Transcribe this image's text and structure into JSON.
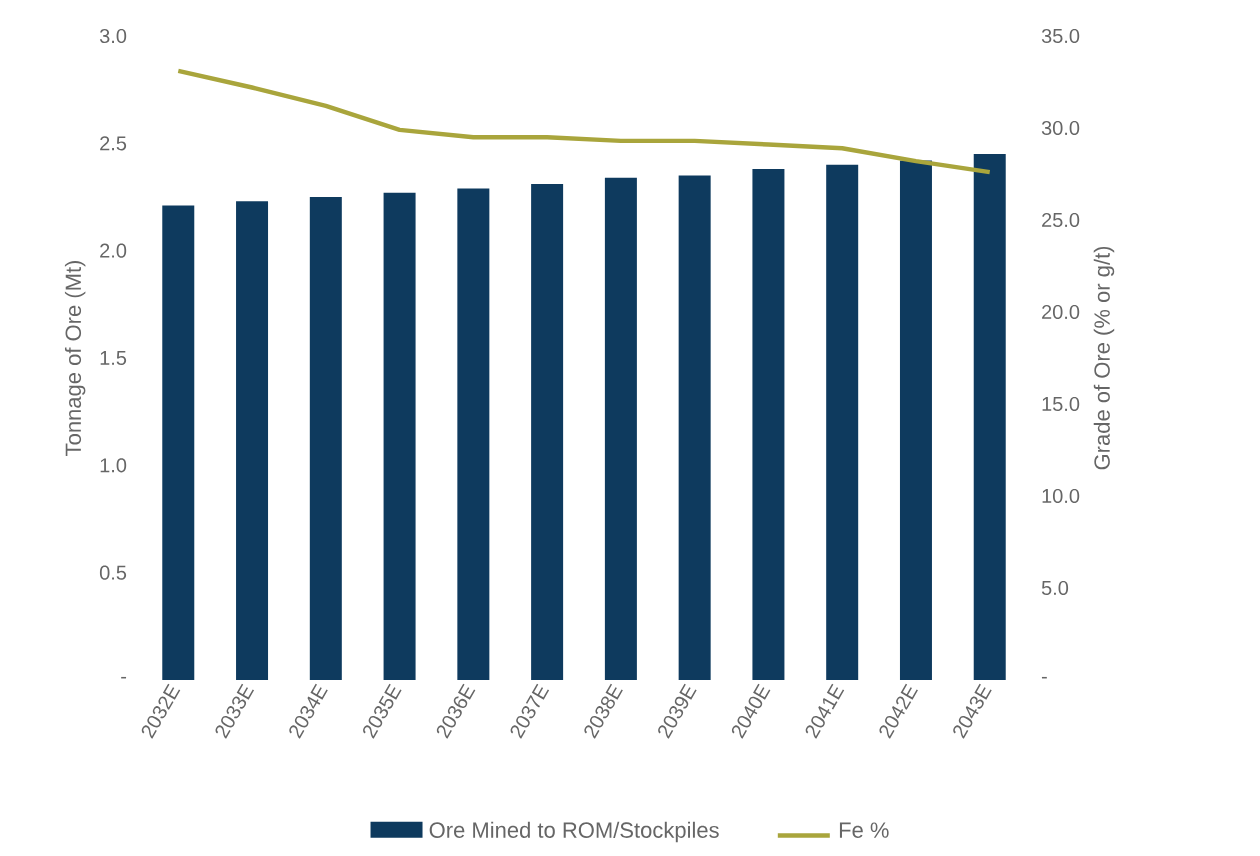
{
  "chart_data": {
    "type": "bar",
    "ylabel": "Tonnage of Ore (Mt)",
    "y2label": "Grade of Ore (% or g/t)",
    "categories": [
      "2032E",
      "2033E",
      "2034E",
      "2035E",
      "2036E",
      "2037E",
      "2038E",
      "2039E",
      "2040E",
      "2041E",
      "2042E",
      "2043E"
    ],
    "series": [
      {
        "name": "Ore Mined to ROM/Stockpiles",
        "color": "#0e3a5e",
        "values": [
          2.21,
          2.23,
          2.25,
          2.27,
          2.29,
          2.31,
          2.34,
          2.35,
          2.38,
          2.4,
          2.42,
          2.45
        ]
      },
      {
        "name": "Fe %",
        "type": "line",
        "axis": "y2",
        "color": "#a9a53c",
        "values": [
          33.1,
          32.2,
          31.2,
          29.9,
          29.5,
          29.5,
          29.3,
          29.3,
          29.1,
          28.9,
          28.2,
          27.6
        ]
      }
    ],
    "ylim": [
      0,
      3
    ],
    "yticks": [
      {
        "value": 0,
        "label": "-"
      },
      {
        "value": 0.5,
        "label": "0.5"
      },
      {
        "value": 1,
        "label": "1.0"
      },
      {
        "value": 1.5,
        "label": "1.5"
      },
      {
        "value": 2,
        "label": "2.0"
      },
      {
        "value": 2.5,
        "label": "2.5"
      },
      {
        "value": 3,
        "label": "3.0"
      }
    ],
    "y2lim": [
      0,
      35
    ],
    "y2ticks": [
      {
        "value": 0,
        "label": "-"
      },
      {
        "value": 5,
        "label": "5.0"
      },
      {
        "value": 10,
        "label": "10.0"
      },
      {
        "value": 15,
        "label": "15.0"
      },
      {
        "value": 20,
        "label": "20.0"
      },
      {
        "value": 25,
        "label": "25.0"
      },
      {
        "value": 30,
        "label": "30.0"
      },
      {
        "value": 35,
        "label": "35.0"
      }
    ],
    "legend": "bottom",
    "grid": false
  }
}
